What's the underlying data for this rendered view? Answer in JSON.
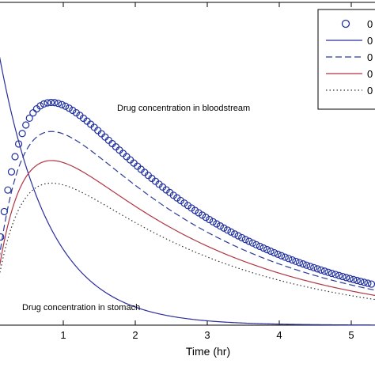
{
  "chart_data": {
    "type": "line",
    "xlabel": "Time (hr)",
    "ylabel": "",
    "xlim": [
      0,
      5.3
    ],
    "ylim": [
      0,
      1
    ],
    "x_ticks": [
      "1",
      "2",
      "3",
      "4",
      "5"
    ],
    "legend_position": "top-right",
    "legend_labels": [
      "0",
      "0",
      "0",
      "0",
      "0"
    ],
    "annotations": [
      {
        "text": "Drug concentration in bloodstream",
        "x": 0.82,
        "y": 0.705
      },
      {
        "text": "Drug concentration in stomach",
        "x": 0.0,
        "y": 0.05
      }
    ],
    "series": [
      {
        "style": "circles",
        "color": "#1f2f9e",
        "k": 3.2
      },
      {
        "style": "solid",
        "color": "#2a2e9a",
        "k": 1.43
      },
      {
        "style": "dashed",
        "color": "#2a3a9a",
        "k": 2.93
      },
      {
        "style": "solid",
        "color": "#b03545",
        "k": 2.63
      },
      {
        "style": "dotted",
        "color": "#333333",
        "k": 2.4
      }
    ],
    "circles_x_step": 0.05,
    "circles_y_max": 0.69,
    "dashed_y_max": 0.6,
    "red_y_max": 0.51,
    "dotted_y_max": 0.44,
    "stomach_start": 0.98
  }
}
